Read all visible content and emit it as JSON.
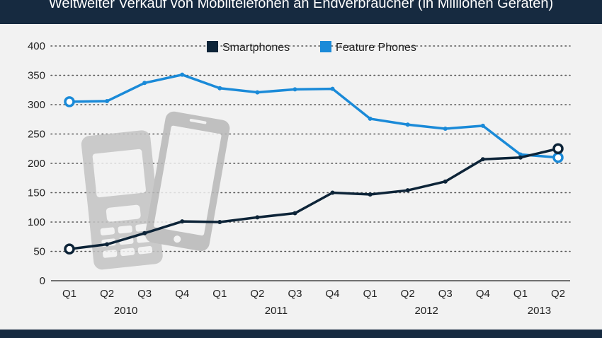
{
  "title": "Weltweiter Verkauf von Mobiltelefonen an Endverbraucher (in Millionen Geräten)",
  "chart_data": {
    "type": "line",
    "title": "Weltweiter Verkauf von Mobiltelefonen an Endverbraucher (in Millionen Geräten)",
    "categories": [
      "Q1",
      "Q2",
      "Q3",
      "Q4",
      "Q1",
      "Q2",
      "Q3",
      "Q4",
      "Q1",
      "Q2",
      "Q3",
      "Q4",
      "Q1",
      "Q2"
    ],
    "years": [
      {
        "label": "2010",
        "start": 0,
        "end": 3
      },
      {
        "label": "2011",
        "start": 4,
        "end": 7
      },
      {
        "label": "2012",
        "start": 8,
        "end": 11
      },
      {
        "label": "2013",
        "start": 12,
        "end": 13
      }
    ],
    "series": [
      {
        "name": "Smartphones",
        "color": "#0d2438",
        "values": [
          54,
          62,
          81,
          101,
          100,
          108,
          115,
          150,
          147,
          154,
          169,
          207,
          210,
          225
        ]
      },
      {
        "name": "Feature Phones",
        "color": "#1a8ad8",
        "values": [
          305,
          306,
          337,
          351,
          328,
          321,
          326,
          327,
          276,
          266,
          259,
          264,
          215,
          210
        ]
      }
    ],
    "ylim": [
      0,
      400
    ],
    "yticks": [
      0,
      50,
      100,
      150,
      200,
      250,
      300,
      350,
      400
    ],
    "grid": true,
    "legend_position": "top"
  }
}
